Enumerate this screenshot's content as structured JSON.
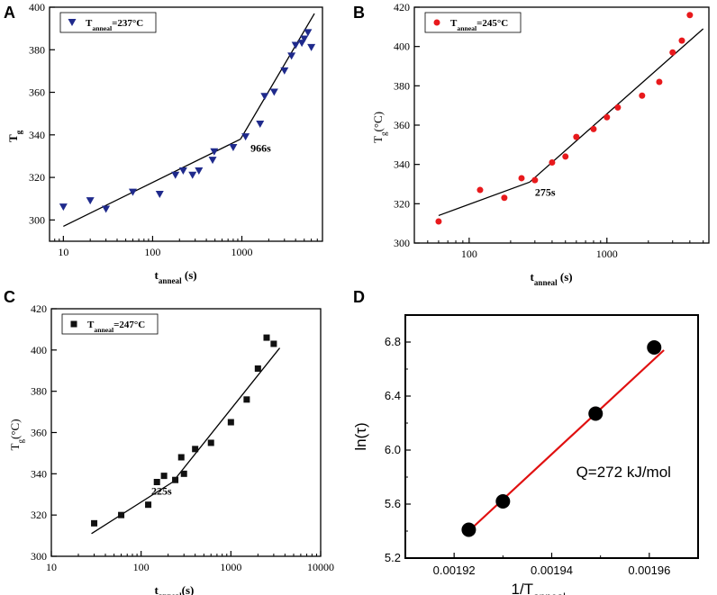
{
  "panels": [
    {
      "letter": "A",
      "type": "scatter",
      "xscale": "log",
      "xlim": [
        7,
        8000
      ],
      "ylim": [
        290,
        400
      ],
      "xticks": [
        10,
        100,
        1000
      ],
      "xtick_labels": [
        "10",
        "100",
        "1000"
      ],
      "yticks": [
        300,
        320,
        340,
        360,
        380,
        400
      ],
      "ylabel": {
        "base": "T",
        "sub": "g"
      },
      "ylabel_suffix": "",
      "xlabel": {
        "base": "t",
        "sub": "anneal",
        "suffix": " (s)"
      },
      "legend": {
        "prefix": "T",
        "sub": "anneal",
        "text": "=237°C"
      },
      "marker": "triangle-down",
      "color": "#1f2a8c",
      "points": [
        [
          10,
          306
        ],
        [
          20,
          309
        ],
        [
          30,
          305
        ],
        [
          60,
          313
        ],
        [
          120,
          312
        ],
        [
          180,
          321
        ],
        [
          220,
          323
        ],
        [
          280,
          321
        ],
        [
          330,
          323
        ],
        [
          470,
          328
        ],
        [
          490,
          332
        ],
        [
          800,
          334
        ],
        [
          1100,
          339
        ],
        [
          1600,
          345
        ],
        [
          1800,
          358
        ],
        [
          2300,
          360
        ],
        [
          3000,
          370
        ],
        [
          3600,
          377
        ],
        [
          4000,
          382
        ],
        [
          4700,
          383
        ],
        [
          5000,
          385
        ],
        [
          5500,
          388
        ],
        [
          6000,
          381
        ]
      ],
      "fit_segments": [
        [
          [
            10,
            297
          ],
          [
            966,
            338
          ]
        ],
        [
          [
            966,
            338
          ],
          [
            6500,
            397
          ]
        ]
      ],
      "annotation": {
        "text": "966s",
        "x": 1250,
        "y": 332
      }
    },
    {
      "letter": "B",
      "type": "scatter",
      "xscale": "log",
      "xlim": [
        40,
        5500
      ],
      "ylim": [
        300,
        420
      ],
      "xticks": [
        100,
        1000
      ],
      "xtick_labels": [
        "100",
        "1000"
      ],
      "yticks": [
        300,
        320,
        340,
        360,
        380,
        400,
        420
      ],
      "ylabel": {
        "base": "T",
        "sub": "g"
      },
      "ylabel_suffix": "(°C)",
      "xlabel": {
        "base": "t",
        "sub": "anneal",
        "suffix": " (s)"
      },
      "legend": {
        "prefix": "T",
        "sub": "anneal",
        "text": "=245°C"
      },
      "marker": "circle",
      "color": "#e8191c",
      "points": [
        [
          60,
          311
        ],
        [
          120,
          327
        ],
        [
          180,
          323
        ],
        [
          240,
          333
        ],
        [
          300,
          332
        ],
        [
          400,
          341
        ],
        [
          500,
          344
        ],
        [
          600,
          354
        ],
        [
          800,
          358
        ],
        [
          1000,
          364
        ],
        [
          1200,
          369
        ],
        [
          1800,
          375
        ],
        [
          2400,
          382
        ],
        [
          3000,
          397
        ],
        [
          3500,
          403
        ],
        [
          4000,
          416
        ]
      ],
      "fit_segments": [
        [
          [
            60,
            314
          ],
          [
            275,
            331
          ]
        ],
        [
          [
            275,
            331
          ],
          [
            5000,
            409
          ]
        ]
      ],
      "annotation": {
        "text": "275s",
        "x": 300,
        "y": 324
      }
    },
    {
      "letter": "C",
      "type": "scatter",
      "xscale": "log",
      "xlim": [
        10,
        10000
      ],
      "ylim": [
        300,
        420
      ],
      "xticks": [
        10,
        100,
        1000,
        10000
      ],
      "xtick_labels": [
        "10",
        "100",
        "1000",
        "10000"
      ],
      "yticks": [
        300,
        320,
        340,
        360,
        380,
        400,
        420
      ],
      "ylabel": {
        "base": "T",
        "sub": "g"
      },
      "ylabel_suffix": "(°C)",
      "xlabel": {
        "base": "t",
        "sub": "anneal",
        "suffix": "(s)"
      },
      "legend": {
        "prefix": "T",
        "sub": "anneal",
        "text": "=247°C"
      },
      "marker": "square",
      "color": "#111111",
      "points": [
        [
          30,
          316
        ],
        [
          60,
          320
        ],
        [
          120,
          325
        ],
        [
          150,
          336
        ],
        [
          180,
          339
        ],
        [
          240,
          337
        ],
        [
          280,
          348
        ],
        [
          300,
          340
        ],
        [
          400,
          352
        ],
        [
          600,
          355
        ],
        [
          1000,
          365
        ],
        [
          1500,
          376
        ],
        [
          2000,
          391
        ],
        [
          2500,
          406
        ],
        [
          3000,
          403
        ]
      ],
      "fit_segments": [
        [
          [
            28,
            311
          ],
          [
            225,
            336
          ]
        ],
        [
          [
            225,
            336
          ],
          [
            3500,
            401
          ]
        ]
      ],
      "annotation": {
        "text": "225s",
        "x": 130,
        "y": 330
      }
    },
    {
      "letter": "D",
      "type": "scatter",
      "xscale": "linear",
      "xlim": [
        0.00191,
        0.00197
      ],
      "ylim": [
        5.2,
        7.0
      ],
      "xticks": [
        0.00192,
        0.00194,
        0.00196
      ],
      "xtick_labels": [
        "0.00192",
        "0.00194",
        "0.00196"
      ],
      "yticks": [
        5.2,
        5.6,
        6.0,
        6.4,
        6.8
      ],
      "ytick_labels": [
        "5.2",
        "5.6",
        "6.0",
        "6.4",
        "6.8"
      ],
      "ylabel_text": "ln(τ)",
      "xlabel": {
        "base": "1/T",
        "sub": "anneal",
        "suffix": ""
      },
      "marker": "big-circle",
      "color": "#000000",
      "line_color": "#e01010",
      "points": [
        [
          0.001923,
          5.41
        ],
        [
          0.00193,
          5.62
        ],
        [
          0.001949,
          6.27
        ],
        [
          0.001961,
          6.76
        ]
      ],
      "fit_segments": [
        [
          [
            0.001923,
            5.4
          ],
          [
            0.001963,
            6.74
          ]
        ]
      ],
      "annotation": {
        "text": "Q=272 kJ/mol",
        "x": 0.001945,
        "y": 5.8
      }
    }
  ]
}
